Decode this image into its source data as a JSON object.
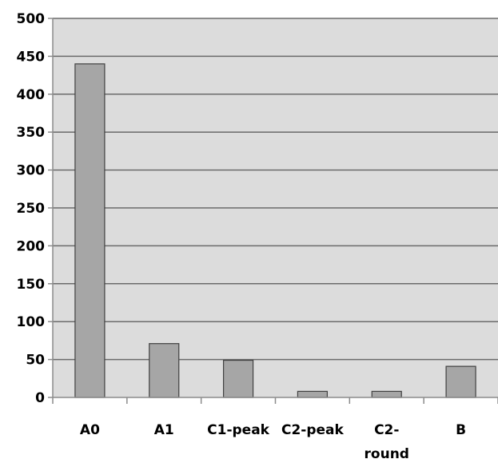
{
  "chart_data": {
    "type": "bar",
    "categories": [
      "A0",
      "A1",
      "C1-peak",
      "C2-peak",
      "C2-\nround",
      "B"
    ],
    "values": [
      440,
      71,
      49,
      8,
      8,
      41
    ],
    "ylim": [
      0,
      500
    ],
    "yticks": [
      "0",
      "50",
      "100",
      "150",
      "200",
      "250",
      "300",
      "350",
      "400",
      "450",
      "500"
    ],
    "grid": true,
    "legend": "none",
    "colors": {
      "plot_background": "#dcdcdc",
      "bar_fill": "#a6a6a6",
      "bar_stroke": "#404040",
      "gridline": "#6b6b6b",
      "axis": "#8c8c8c"
    }
  }
}
